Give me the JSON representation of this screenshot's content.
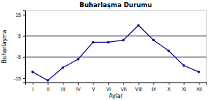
{
  "chart_data": {
    "type": "line",
    "title": "Buharlaşma Durumu",
    "xlabel": "Aylar",
    "ylabel": "Buharlaşma",
    "categories": [
      "I",
      "II",
      "III",
      "IV",
      "V",
      "VI",
      "VII",
      "VIII",
      "IX",
      "X",
      "XI",
      "XII"
    ],
    "values": [
      -12,
      -16,
      -10,
      -6,
      2,
      2,
      3,
      10,
      3,
      -2,
      -9,
      -12
    ],
    "color": "#00008B",
    "marker": "circle",
    "hlines": [
      5,
      -5
    ],
    "ylim": [
      -17,
      17
    ],
    "yticks": [
      -15,
      -5,
      5,
      15
    ],
    "grid": false
  }
}
